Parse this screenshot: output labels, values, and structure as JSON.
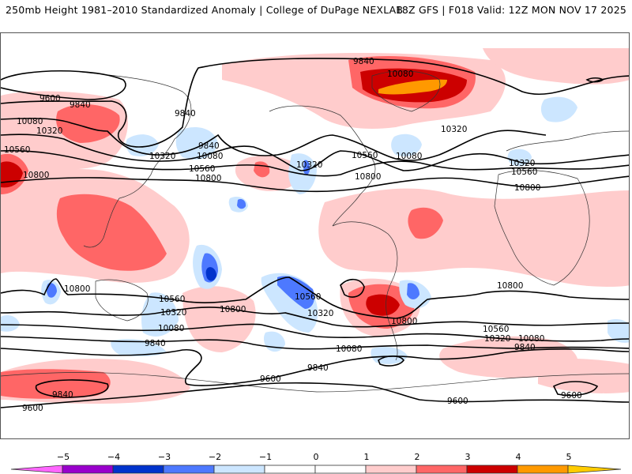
{
  "header": {
    "title_left": "250mb Height 1981–2010 Standardized Anomaly | College of DuPage NEXLAB",
    "title_right": "18Z GFS | F018 Valid: 12Z MON NOV 17 2025"
  },
  "map": {
    "field": "250mb Height",
    "contour_units": "m",
    "contour_labels": [
      {
        "id": "c1",
        "text": "9600"
      },
      {
        "id": "c2",
        "text": "9840"
      },
      {
        "id": "c3",
        "text": "10080"
      },
      {
        "id": "c4",
        "text": "10320"
      },
      {
        "id": "c5",
        "text": "10560"
      },
      {
        "id": "c6",
        "text": "10800"
      },
      {
        "id": "c7",
        "text": "9840"
      },
      {
        "id": "c8",
        "text": "9840"
      },
      {
        "id": "c9",
        "text": "10080"
      },
      {
        "id": "c10",
        "text": "10320"
      },
      {
        "id": "c11",
        "text": "10560"
      },
      {
        "id": "c12",
        "text": "10800"
      },
      {
        "id": "c13",
        "text": "9840"
      },
      {
        "id": "c14",
        "text": "10080"
      },
      {
        "id": "c15",
        "text": "10320"
      },
      {
        "id": "c16",
        "text": "10560"
      },
      {
        "id": "c17",
        "text": "10080"
      },
      {
        "id": "c18",
        "text": "10800"
      },
      {
        "id": "c19",
        "text": "10320"
      },
      {
        "id": "c20",
        "text": "10320"
      },
      {
        "id": "c21",
        "text": "10560"
      },
      {
        "id": "c22",
        "text": "10800"
      },
      {
        "id": "c23",
        "text": "10320"
      },
      {
        "id": "c24",
        "text": "10800"
      },
      {
        "id": "c25",
        "text": "10560"
      },
      {
        "id": "c26",
        "text": "10320"
      },
      {
        "id": "c27",
        "text": "10080"
      },
      {
        "id": "c28",
        "text": "9840"
      },
      {
        "id": "c29",
        "text": "9840"
      },
      {
        "id": "c30",
        "text": "9600"
      },
      {
        "id": "c31",
        "text": "10800"
      },
      {
        "id": "c32",
        "text": "10560"
      },
      {
        "id": "c33",
        "text": "10320"
      },
      {
        "id": "c34",
        "text": "10080"
      },
      {
        "id": "c35",
        "text": "9840"
      },
      {
        "id": "c36",
        "text": "9600"
      },
      {
        "id": "c37",
        "text": "10800"
      },
      {
        "id": "c38",
        "text": "10560"
      },
      {
        "id": "c39",
        "text": "10320"
      },
      {
        "id": "c40",
        "text": "10080"
      },
      {
        "id": "c41",
        "text": "9840"
      },
      {
        "id": "c42",
        "text": "9600"
      },
      {
        "id": "c43",
        "text": "9600"
      },
      {
        "id": "c44",
        "text": "10800"
      }
    ]
  },
  "colorbar": {
    "ticks": [
      "−5",
      "−4",
      "−3",
      "−2",
      "−1",
      "0",
      "1",
      "2",
      "3",
      "4",
      "5"
    ],
    "colors": {
      "below_-5": "#ff66ff",
      "-5_-4": "#9900cc",
      "-4_-3": "#0033cc",
      "-3_-2": "#4d79ff",
      "-2_-1": "#cce6ff",
      "-1_0": "#ffffff",
      "0_1": "#ffffff",
      "1_2": "#ffcccc",
      "2_3": "#ff6666",
      "3_4": "#cc0000",
      "4_5": "#ff9900",
      "above_5": "#ffcc00"
    }
  }
}
